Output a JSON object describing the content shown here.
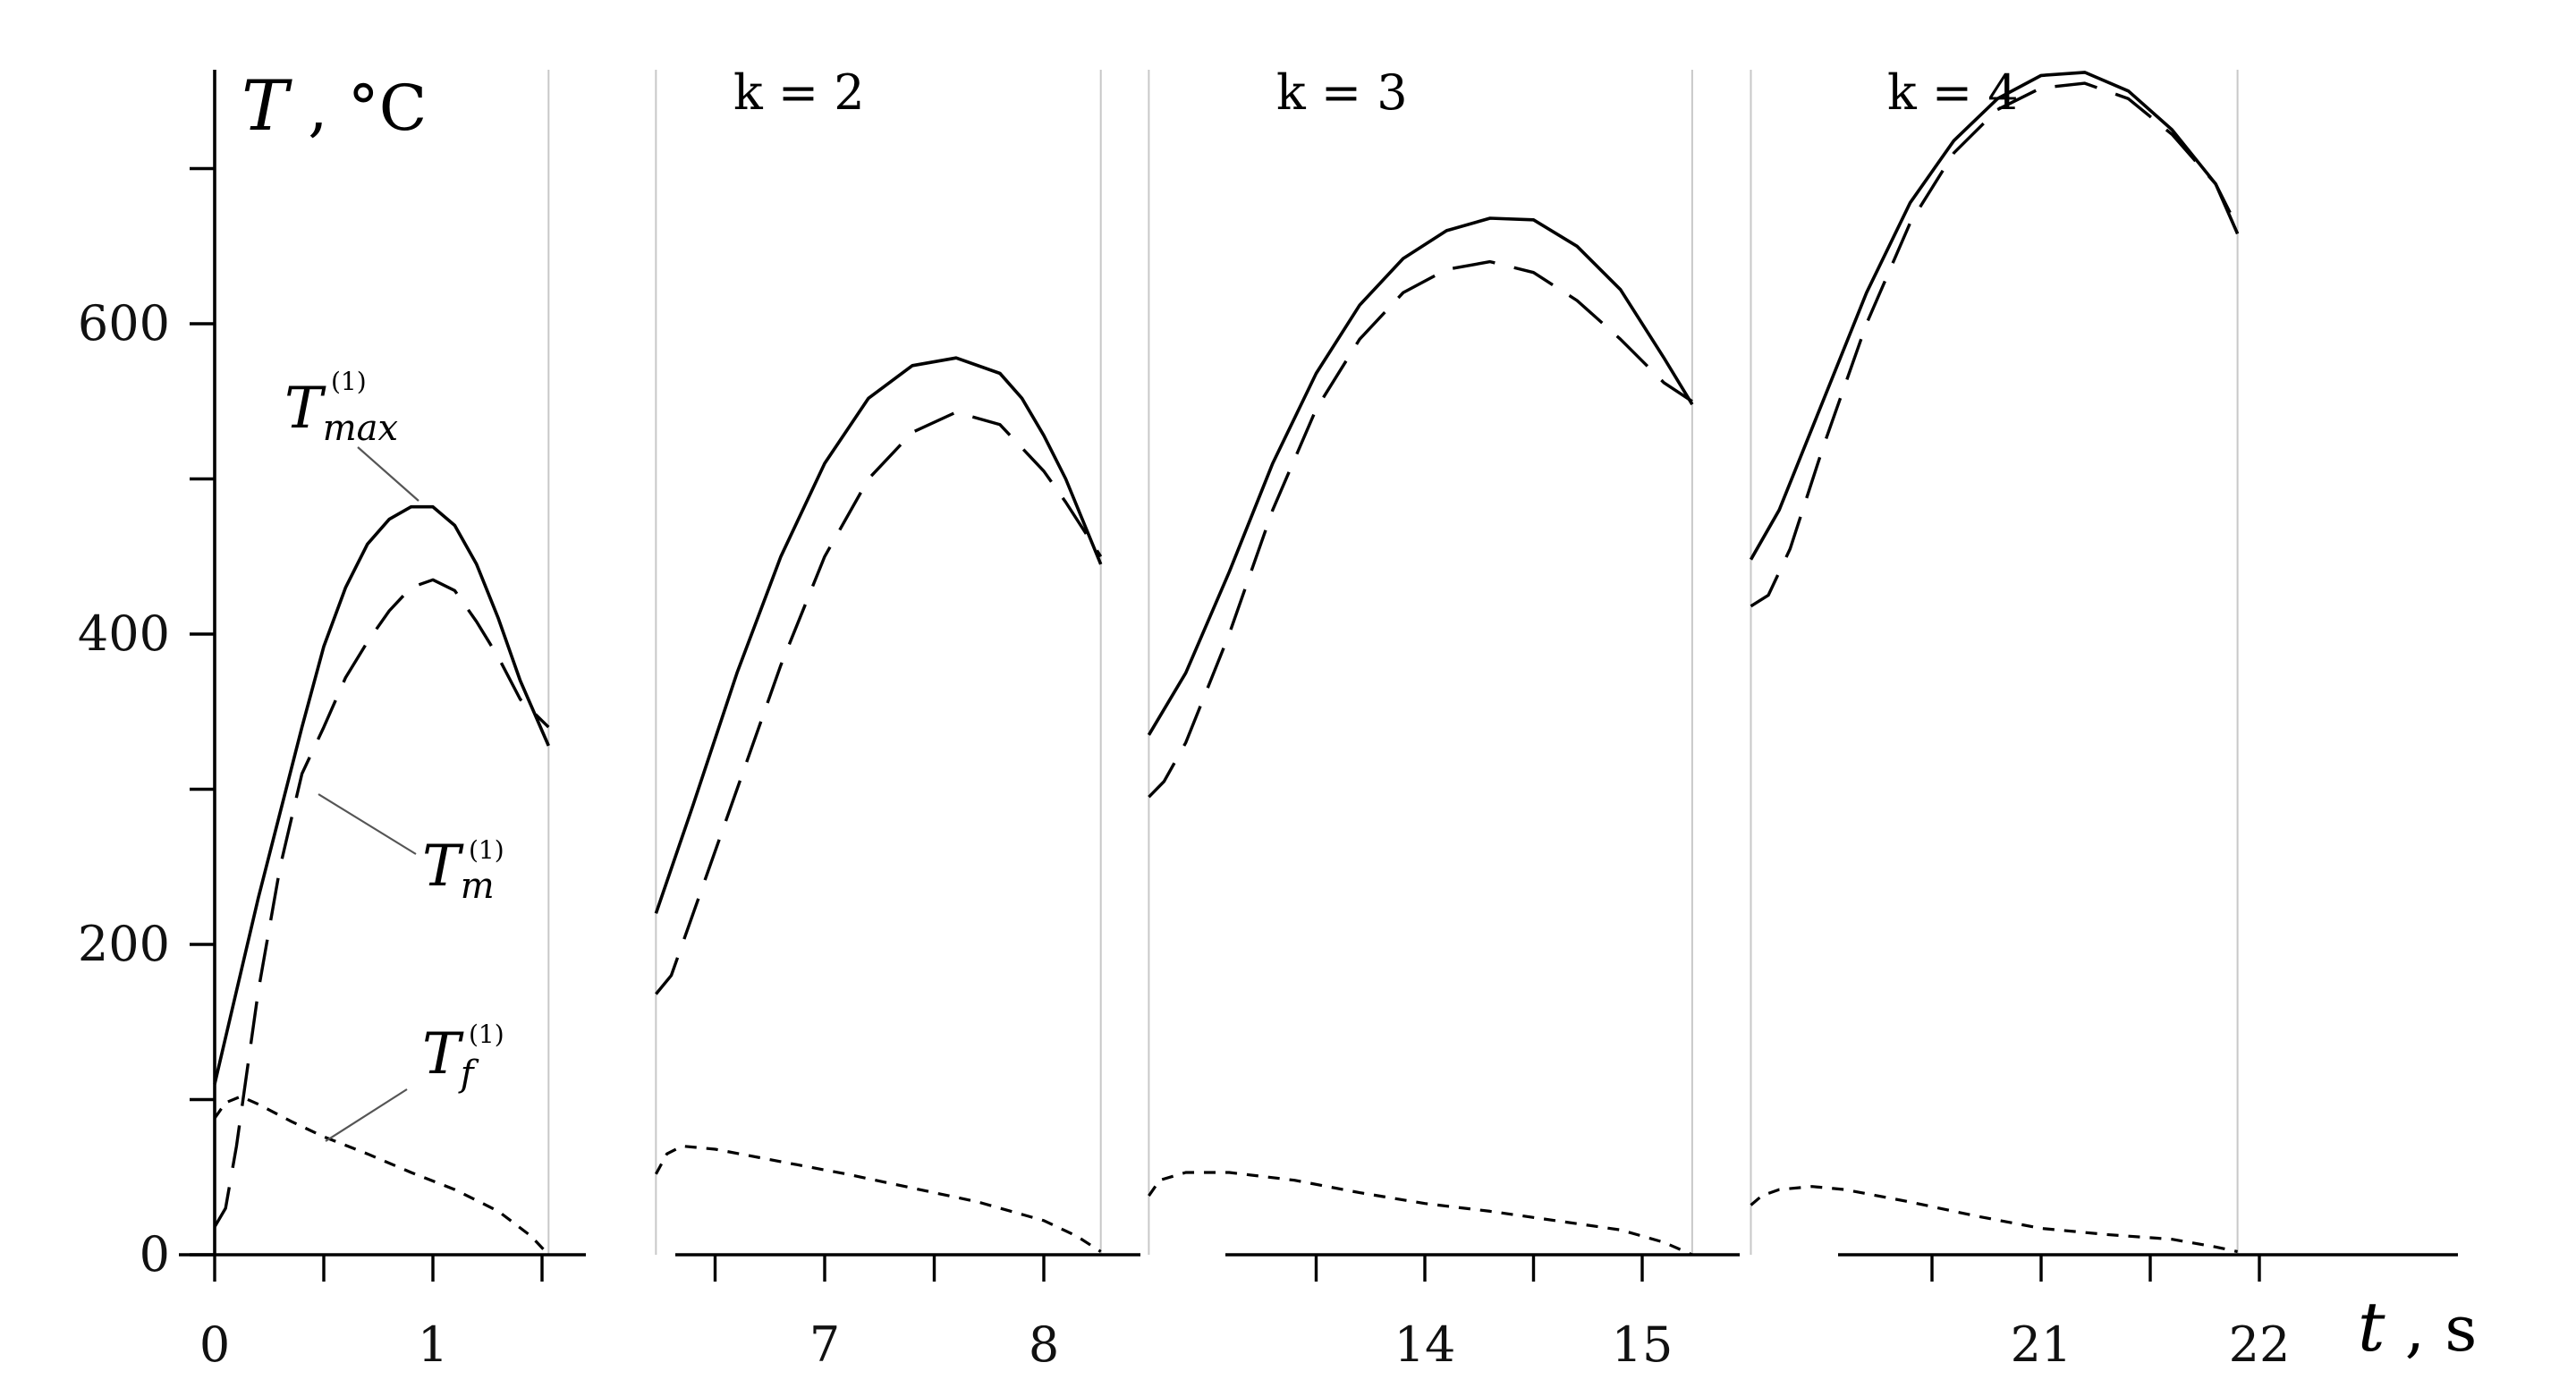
{
  "chart_data": {
    "type": "line",
    "y_axis": {
      "ylim": [
        0,
        760
      ],
      "tick_values": [
        0,
        200,
        400,
        600
      ],
      "minor_tick_values": [
        100,
        300,
        500,
        700
      ],
      "title_symbol": "T",
      "title_sep": " , ",
      "title_unit": "°C"
    },
    "x_axis": {
      "title_symbol": "t",
      "title_sep": " , ",
      "title_unit": "s"
    },
    "series_labels": [
      {
        "key": "max",
        "base": "T",
        "superscript": "(1)",
        "subscript": "max"
      },
      {
        "key": "m",
        "base": "T",
        "superscript": "(1)",
        "subscript": "m"
      },
      {
        "key": "f",
        "base": "T",
        "superscript": "(1)",
        "subscript": "f"
      }
    ],
    "panels": [
      {
        "label": "",
        "xlim": [
          0,
          1.72
        ],
        "cycle": [
          0,
          1.53
        ],
        "tick_values": [
          0,
          0.5,
          1,
          1.5
        ],
        "tick_labels": [
          {
            "x": 0,
            "text": "0"
          },
          {
            "x": 1,
            "text": "1"
          }
        ],
        "series": {
          "max": [
            [
              0,
              110
            ],
            [
              0.1,
              170
            ],
            [
              0.2,
              230
            ],
            [
              0.3,
              285
            ],
            [
              0.4,
              340
            ],
            [
              0.5,
              392
            ],
            [
              0.6,
              430
            ],
            [
              0.7,
              458
            ],
            [
              0.8,
              474
            ],
            [
              0.9,
              482
            ],
            [
              1.0,
              482
            ],
            [
              1.1,
              470
            ],
            [
              1.2,
              445
            ],
            [
              1.3,
              410
            ],
            [
              1.4,
              370
            ],
            [
              1.53,
              328
            ]
          ],
          "m": [
            [
              0,
              18
            ],
            [
              0.05,
              30
            ],
            [
              0.1,
              70
            ],
            [
              0.2,
              170
            ],
            [
              0.3,
              250
            ],
            [
              0.4,
              310
            ],
            [
              0.5,
              340
            ],
            [
              0.6,
              372
            ],
            [
              0.7,
              395
            ],
            [
              0.8,
              415
            ],
            [
              0.9,
              430
            ],
            [
              1.0,
              435
            ],
            [
              1.1,
              428
            ],
            [
              1.2,
              408
            ],
            [
              1.3,
              385
            ],
            [
              1.4,
              358
            ],
            [
              1.53,
              340
            ]
          ],
          "f": [
            [
              0,
              88
            ],
            [
              0.05,
              98
            ],
            [
              0.12,
              102
            ],
            [
              0.2,
              97
            ],
            [
              0.35,
              86
            ],
            [
              0.5,
              76
            ],
            [
              0.7,
              65
            ],
            [
              0.9,
              53
            ],
            [
              1.1,
              42
            ],
            [
              1.3,
              28
            ],
            [
              1.45,
              12
            ],
            [
              1.53,
              0
            ]
          ]
        }
      },
      {
        "label": "k = 2",
        "xlim": [
          6.21,
          8.45
        ],
        "cycle": [
          6.23,
          8.26
        ],
        "tick_values": [
          6.5,
          7,
          7.5,
          8
        ],
        "tick_labels": [
          {
            "x": 7,
            "text": "7"
          },
          {
            "x": 8,
            "text": "8"
          }
        ],
        "series": {
          "max": [
            [
              6.23,
              220
            ],
            [
              6.4,
              290
            ],
            [
              6.6,
              375
            ],
            [
              6.8,
              450
            ],
            [
              7.0,
              510
            ],
            [
              7.2,
              552
            ],
            [
              7.4,
              573
            ],
            [
              7.6,
              578
            ],
            [
              7.8,
              568
            ],
            [
              7.9,
              552
            ],
            [
              8.0,
              528
            ],
            [
              8.1,
              500
            ],
            [
              8.26,
              445
            ]
          ],
          "m": [
            [
              6.23,
              168
            ],
            [
              6.3,
              180
            ],
            [
              6.4,
              220
            ],
            [
              6.6,
              300
            ],
            [
              6.8,
              380
            ],
            [
              7.0,
              450
            ],
            [
              7.2,
              500
            ],
            [
              7.4,
              530
            ],
            [
              7.6,
              543
            ],
            [
              7.8,
              535
            ],
            [
              8.0,
              505
            ],
            [
              8.1,
              485
            ],
            [
              8.26,
              450
            ]
          ],
          "f": [
            [
              6.23,
              52
            ],
            [
              6.28,
              65
            ],
            [
              6.35,
              70
            ],
            [
              6.5,
              68
            ],
            [
              6.8,
              60
            ],
            [
              7.1,
              52
            ],
            [
              7.4,
              43
            ],
            [
              7.7,
              34
            ],
            [
              8.0,
              22
            ],
            [
              8.15,
              12
            ],
            [
              8.26,
              2
            ]
          ]
        }
      },
      {
        "label": "k = 3",
        "xlim": [
          12.71,
          15.45
        ],
        "cycle": [
          12.73,
          15.23
        ],
        "tick_values": [
          13.5,
          14,
          14.5,
          15
        ],
        "tick_labels": [
          {
            "x": 14,
            "text": "14"
          },
          {
            "x": 15,
            "text": "15"
          }
        ],
        "series": {
          "max": [
            [
              12.73,
              335
            ],
            [
              12.9,
              375
            ],
            [
              13.1,
              440
            ],
            [
              13.3,
              510
            ],
            [
              13.5,
              568
            ],
            [
              13.7,
              612
            ],
            [
              13.9,
              642
            ],
            [
              14.1,
              660
            ],
            [
              14.3,
              668
            ],
            [
              14.5,
              667
            ],
            [
              14.7,
              650
            ],
            [
              14.9,
              622
            ],
            [
              15.1,
              578
            ],
            [
              15.23,
              548
            ]
          ],
          "m": [
            [
              12.73,
              295
            ],
            [
              12.8,
              305
            ],
            [
              12.9,
              330
            ],
            [
              13.1,
              400
            ],
            [
              13.3,
              480
            ],
            [
              13.5,
              545
            ],
            [
              13.7,
              590
            ],
            [
              13.9,
              620
            ],
            [
              14.1,
              635
            ],
            [
              14.3,
              640
            ],
            [
              14.5,
              633
            ],
            [
              14.7,
              615
            ],
            [
              14.9,
              590
            ],
            [
              15.1,
              562
            ],
            [
              15.23,
              550
            ]
          ],
          "f": [
            [
              12.73,
              38
            ],
            [
              12.78,
              48
            ],
            [
              12.9,
              53
            ],
            [
              13.1,
              53
            ],
            [
              13.4,
              48
            ],
            [
              13.7,
              40
            ],
            [
              14.0,
              33
            ],
            [
              14.3,
              28
            ],
            [
              14.6,
              22
            ],
            [
              14.9,
              16
            ],
            [
              15.1,
              8
            ],
            [
              15.23,
              0
            ]
          ]
        }
      },
      {
        "label": "k = 4",
        "xlim": [
          19.5,
          22.8
        ],
        "cycle": [
          19.67,
          21.9
        ],
        "tick_values": [
          20.5,
          21,
          21.5,
          22
        ],
        "tick_labels": [
          {
            "x": 21,
            "text": "21"
          },
          {
            "x": 22,
            "text": "22"
          }
        ],
        "series": {
          "max": [
            [
              19.67,
              448
            ],
            [
              19.8,
              480
            ],
            [
              20.0,
              550
            ],
            [
              20.2,
              620
            ],
            [
              20.4,
              678
            ],
            [
              20.6,
              718
            ],
            [
              20.8,
              745
            ],
            [
              21.0,
              760
            ],
            [
              21.2,
              762
            ],
            [
              21.4,
              750
            ],
            [
              21.6,
              725
            ],
            [
              21.8,
              690
            ],
            [
              21.9,
              658
            ]
          ],
          "m": [
            [
              19.67,
              418
            ],
            [
              19.75,
              425
            ],
            [
              19.85,
              455
            ],
            [
              20.0,
              520
            ],
            [
              20.2,
              600
            ],
            [
              20.4,
              665
            ],
            [
              20.6,
              710
            ],
            [
              20.8,
              738
            ],
            [
              21.0,
              752
            ],
            [
              21.2,
              755
            ],
            [
              21.4,
              745
            ],
            [
              21.6,
              722
            ],
            [
              21.8,
              690
            ],
            [
              21.9,
              662
            ]
          ],
          "f": [
            [
              19.67,
              32
            ],
            [
              19.72,
              38
            ],
            [
              19.8,
              42
            ],
            [
              19.95,
              44
            ],
            [
              20.1,
              42
            ],
            [
              20.4,
              34
            ],
            [
              20.7,
              25
            ],
            [
              21.0,
              17
            ],
            [
              21.3,
              13
            ],
            [
              21.6,
              10
            ],
            [
              21.8,
              5
            ],
            [
              21.9,
              2
            ]
          ]
        }
      }
    ]
  }
}
